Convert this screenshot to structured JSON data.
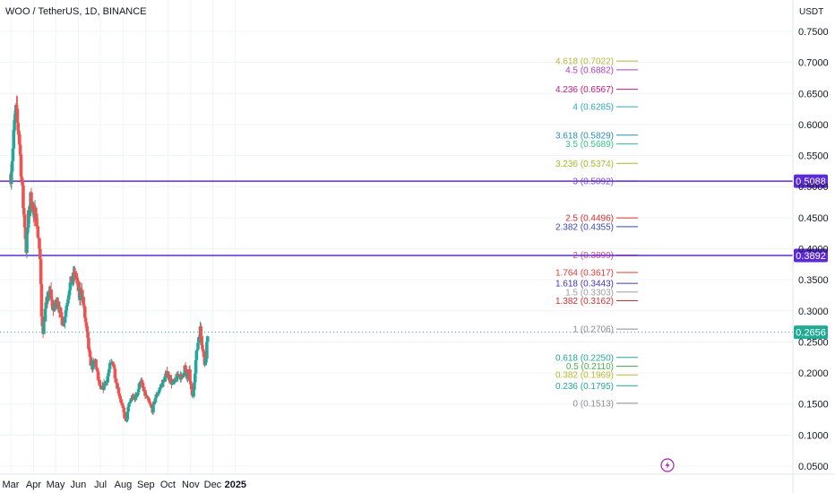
{
  "header": {
    "symbol_title": "WOO / TetherUS, 1D, BINANCE"
  },
  "price_axis": {
    "currency": "USDT"
  },
  "chart_data": {
    "type": "candlestick",
    "title": "WOO / TetherUS, 1D, BINANCE",
    "ylabel": "USDT",
    "y_ticks": [
      "0.7500",
      "0.7000",
      "0.6500",
      "0.6000",
      "0.5500",
      "0.5000",
      "0.4500",
      "0.4000",
      "0.3500",
      "0.3000",
      "0.2500",
      "0.2000",
      "0.1500",
      "0.1000",
      "0.0500"
    ],
    "x_ticks": [
      "Mar",
      "Apr",
      "May",
      "Jun",
      "Jul",
      "Aug",
      "Sep",
      "Oct",
      "Nov",
      "Dec",
      "2025"
    ],
    "ylim": [
      0.04,
      0.78
    ],
    "colors": {
      "up": "#26a69a",
      "down": "#ef5350",
      "horizontal_line": "#5b2bd6",
      "last_price": "#22ab94"
    },
    "horizontal_lines": [
      {
        "price": 0.5088,
        "label": "0.5088"
      },
      {
        "price": 0.3892,
        "label": "0.3892"
      }
    ],
    "last_price": {
      "price": 0.2656,
      "label": "0.2656"
    },
    "fib_levels": [
      {
        "label": "4.618 (0.7022)",
        "price": 0.7022,
        "color": "#b5b83a"
      },
      {
        "label": "4.5 (0.6882)",
        "price": 0.6882,
        "color": "#b03fb5"
      },
      {
        "label": "4.236 (0.6567)",
        "price": 0.6567,
        "color": "#c2187b"
      },
      {
        "label": "4 (0.6285)",
        "price": 0.6285,
        "color": "#2ea7b8"
      },
      {
        "label": "3.618 (0.5829)",
        "price": 0.5829,
        "color": "#2a8fb0"
      },
      {
        "label": "3.5 (0.5689)",
        "price": 0.5689,
        "color": "#35c48c"
      },
      {
        "label": "3.236 (0.5374)",
        "price": 0.5374,
        "color": "#a7b92a"
      },
      {
        "label": "3 (0.5092)",
        "price": 0.5092,
        "color": "#7c4ad8"
      },
      {
        "label": "2.5 (0.4496)",
        "price": 0.4496,
        "color": "#d32f2f"
      },
      {
        "label": "2.382 (0.4355)",
        "price": 0.4355,
        "color": "#3949ab"
      },
      {
        "label": "2 (0.3899)",
        "price": 0.3899,
        "color": "#e0457b"
      },
      {
        "label": "1.764 (0.3617)",
        "price": 0.3617,
        "color": "#e53935"
      },
      {
        "label": "1.618 (0.3443)",
        "price": 0.3443,
        "color": "#3f34b5"
      },
      {
        "label": "1.5 (0.3303)",
        "price": 0.3303,
        "color": "#9e9e9e"
      },
      {
        "label": "1.382 (0.3162)",
        "price": 0.3162,
        "color": "#d32f2f"
      },
      {
        "label": "1 (0.2706)",
        "price": 0.2706,
        "color": "#8c8c8c"
      },
      {
        "label": "0.618 (0.2250)",
        "price": 0.225,
        "color": "#26a69a"
      },
      {
        "label": "0.5 (0.2110)",
        "price": 0.211,
        "color": "#4caf50"
      },
      {
        "label": "0.382 (0.1969)",
        "price": 0.1969,
        "color": "#b7b82a"
      },
      {
        "label": "0.236 (0.1795)",
        "price": 0.1795,
        "color": "#26a69a"
      },
      {
        "label": "0 (0.1513)",
        "price": 0.1513,
        "color": "#8c8c8c"
      }
    ],
    "trend": [
      [
        "Mar 1",
        0.52
      ],
      [
        "Mar 4",
        0.56
      ],
      [
        "Mar 6",
        0.6
      ],
      [
        "Mar 8",
        0.62
      ],
      [
        "Mar 10",
        0.6
      ],
      [
        "Mar 12",
        0.59
      ],
      [
        "Mar 15",
        0.53
      ],
      [
        "Mar 18",
        0.47
      ],
      [
        "Mar 20",
        0.44
      ],
      [
        "Mar 22",
        0.4
      ],
      [
        "Mar 25",
        0.45
      ],
      [
        "Mar 28",
        0.48
      ],
      [
        "Mar 31",
        0.47
      ],
      [
        "Apr 2",
        0.44
      ],
      [
        "Apr 4",
        0.47
      ],
      [
        "Apr 6",
        0.43
      ],
      [
        "Apr 8",
        0.42
      ],
      [
        "Apr 10",
        0.38
      ],
      [
        "Apr 12",
        0.29
      ],
      [
        "Apr 14",
        0.27
      ],
      [
        "Apr 17",
        0.3
      ],
      [
        "Apr 20",
        0.32
      ],
      [
        "Apr 24",
        0.33
      ],
      [
        "Apr 28",
        0.3
      ],
      [
        "May 1",
        0.31
      ],
      [
        "May 4",
        0.32
      ],
      [
        "May 8",
        0.29
      ],
      [
        "May 12",
        0.28
      ],
      [
        "May 16",
        0.31
      ],
      [
        "May 20",
        0.34
      ],
      [
        "May 24",
        0.35
      ],
      [
        "May 28",
        0.36
      ],
      [
        "May 31",
        0.34
      ],
      [
        "Jun 3",
        0.32
      ],
      [
        "Jun 5",
        0.34
      ],
      [
        "Jun 8",
        0.31
      ],
      [
        "Jun 11",
        0.28
      ],
      [
        "Jun 14",
        0.25
      ],
      [
        "Jun 17",
        0.22
      ],
      [
        "Jun 20",
        0.21
      ],
      [
        "Jun 24",
        0.22
      ],
      [
        "Jun 28",
        0.19
      ],
      [
        "Jul 2",
        0.17
      ],
      [
        "Jul 6",
        0.18
      ],
      [
        "Jul 10",
        0.19
      ],
      [
        "Jul 14",
        0.21
      ],
      [
        "Jul 18",
        0.22
      ],
      [
        "Jul 22",
        0.19
      ],
      [
        "Jul 26",
        0.17
      ],
      [
        "Jul 30",
        0.15
      ],
      [
        "Aug 3",
        0.13
      ],
      [
        "Aug 5",
        0.12
      ],
      [
        "Aug 9",
        0.15
      ],
      [
        "Aug 13",
        0.16
      ],
      [
        "Aug 17",
        0.16
      ],
      [
        "Aug 21",
        0.17
      ],
      [
        "Aug 25",
        0.19
      ],
      [
        "Aug 29",
        0.17
      ],
      [
        "Sep 2",
        0.16
      ],
      [
        "Sep 6",
        0.15
      ],
      [
        "Sep 10",
        0.14
      ],
      [
        "Sep 14",
        0.16
      ],
      [
        "Sep 18",
        0.17
      ],
      [
        "Sep 22",
        0.18
      ],
      [
        "Sep 26",
        0.19
      ],
      [
        "Sep 30",
        0.2
      ],
      [
        "Oct 4",
        0.19
      ],
      [
        "Oct 8",
        0.18
      ],
      [
        "Oct 12",
        0.19
      ],
      [
        "Oct 16",
        0.2
      ],
      [
        "Oct 20",
        0.19
      ],
      [
        "Oct 24",
        0.21
      ],
      [
        "Oct 27",
        0.19
      ],
      [
        "Oct 30",
        0.2
      ],
      [
        "Nov 2",
        0.17
      ],
      [
        "Nov 4",
        0.16
      ],
      [
        "Nov 6",
        0.19
      ],
      [
        "Nov 8",
        0.22
      ],
      [
        "Nov 10",
        0.24
      ],
      [
        "Nov 12",
        0.26
      ],
      [
        "Nov 14",
        0.27
      ],
      [
        "Nov 16",
        0.25
      ],
      [
        "Nov 18",
        0.24
      ],
      [
        "Nov 20",
        0.21
      ],
      [
        "Nov 22",
        0.23
      ],
      [
        "Nov 24",
        0.2656
      ]
    ]
  }
}
